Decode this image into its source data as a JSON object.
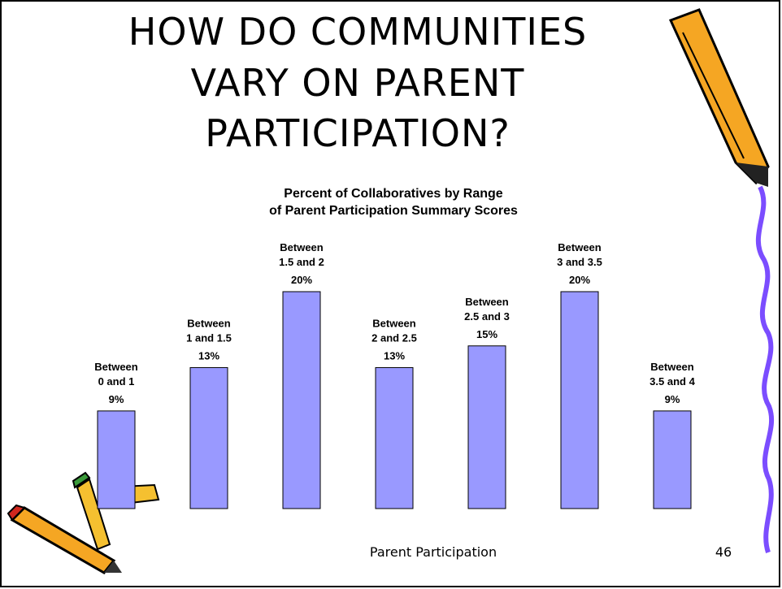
{
  "chart_data": {
    "type": "bar",
    "title": [
      "HOW DO COMMUNITIES",
      "VARY ON PARENT",
      "PARTICIPATION?"
    ],
    "subtitle": [
      "Percent of Collaboratives by Range",
      "of Parent Participation Summary Scores"
    ],
    "categories": [
      [
        "Between",
        "0 and 1"
      ],
      [
        "Between",
        "1 and 1.5"
      ],
      [
        "Between",
        "1.5 and 2"
      ],
      [
        "Between",
        "2 and 2.5"
      ],
      [
        "Between",
        "2.5 and 3"
      ],
      [
        "Between",
        "3 and 3.5"
      ],
      [
        "Between",
        "3.5 and 4"
      ]
    ],
    "values": [
      9,
      13,
      20,
      13,
      15,
      20,
      9
    ],
    "value_labels": [
      "9%",
      "13%",
      "20%",
      "13%",
      "15%",
      "20%",
      "9%"
    ],
    "color": "#9999ff",
    "x_label": "Parent Participation",
    "page_number": "46"
  }
}
